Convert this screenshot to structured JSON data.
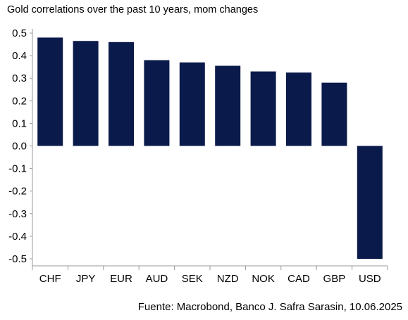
{
  "chart_data": {
    "type": "bar",
    "title": "Gold correlations over the past 10 years, mom changes",
    "categories": [
      "CHF",
      "JPY",
      "EUR",
      "AUD",
      "SEK",
      "NZD",
      "NOK",
      "CAD",
      "GBP",
      "USD"
    ],
    "values": [
      0.48,
      0.465,
      0.46,
      0.38,
      0.37,
      0.355,
      0.33,
      0.325,
      0.28,
      -0.5
    ],
    "y_ticks": [
      "0.5",
      "0.4",
      "0.3",
      "0.2",
      "0.1",
      "0.0",
      "-0.1",
      "-0.2",
      "-0.3",
      "-0.4",
      "-0.5"
    ],
    "ylim": [
      -0.5,
      0.5
    ],
    "xlabel": "",
    "ylabel": "",
    "grid": false,
    "bar_color": "#0a1a4a",
    "axis_color": "#999999"
  },
  "source": "Fuente: Macrobond, Banco J. Safra Sarasin, 10.06.2025"
}
